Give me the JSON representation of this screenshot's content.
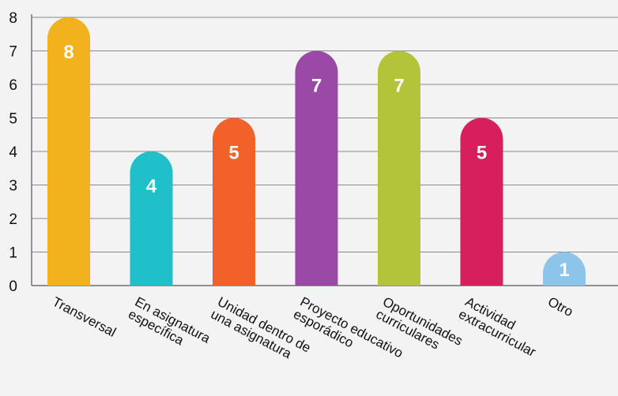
{
  "chart_data": {
    "type": "bar",
    "categories": [
      [
        "Transversal"
      ],
      [
        "En asignatura",
        "específica"
      ],
      [
        "Unidad dentro de",
        "una asignatura"
      ],
      [
        "Proyecto educativo",
        "esporádico"
      ],
      [
        "Oportunidades",
        "curriculares"
      ],
      [
        "Actividad",
        "extracurricular"
      ],
      [
        "Otro"
      ]
    ],
    "values": [
      8,
      4,
      5,
      7,
      7,
      5,
      1
    ],
    "data_labels": [
      "8",
      "4",
      "5",
      "7",
      "7",
      "5",
      "1"
    ],
    "colors": [
      "#f2b21d",
      "#1fc0c9",
      "#f0622a",
      "#9a4aa6",
      "#b3c33a",
      "#d61f5c",
      "#8cc4ea"
    ],
    "y_ticks": [
      "0",
      "1",
      "2",
      "3",
      "4",
      "5",
      "6",
      "7",
      "8"
    ],
    "ylim": [
      0,
      8
    ],
    "grid": true,
    "legend": "none"
  }
}
